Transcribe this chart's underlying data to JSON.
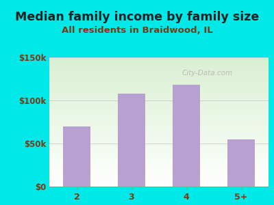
{
  "title": "Median family income by family size",
  "subtitle": "All residents in Braidwood, IL",
  "categories": [
    "2",
    "3",
    "4",
    "5+"
  ],
  "values": [
    70000,
    108000,
    118000,
    55000
  ],
  "bar_color": "#b8a0d0",
  "outer_bg": "#00e8e8",
  "title_color": "#222222",
  "subtitle_color": "#7b3a10",
  "tick_label_color": "#7b3a10",
  "ytick_labels": [
    "$0",
    "$50k",
    "$100k",
    "$150k"
  ],
  "ytick_values": [
    0,
    50000,
    100000,
    150000
  ],
  "ylim": [
    0,
    150000
  ],
  "title_fontsize": 12.5,
  "subtitle_fontsize": 9.5,
  "watermark": "City-Data.com",
  "bar_width": 0.5
}
